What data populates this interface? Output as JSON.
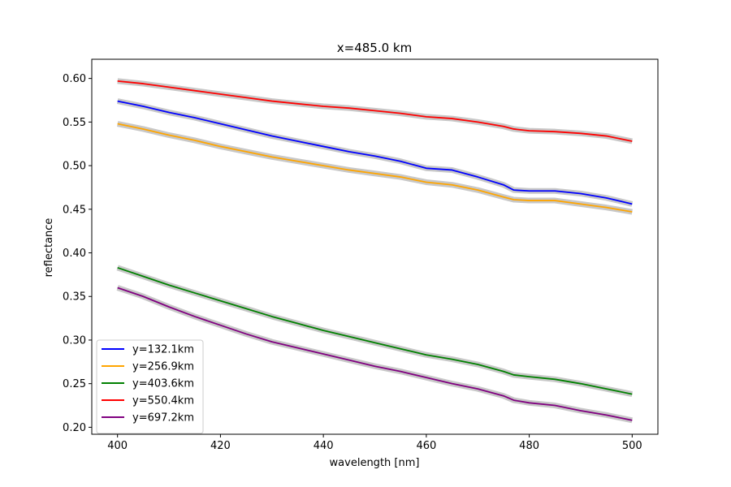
{
  "chart_data": {
    "type": "line",
    "title": "x=485.0 km",
    "xlabel": "wavelength [nm]",
    "ylabel": "reflectance",
    "xlim": [
      395,
      505
    ],
    "ylim": [
      0.192,
      0.622
    ],
    "xticks": [
      400,
      420,
      440,
      460,
      480,
      500
    ],
    "xtick_labels": [
      "400",
      "420",
      "440",
      "460",
      "480",
      "500"
    ],
    "yticks": [
      0.2,
      0.25,
      0.3,
      0.35,
      0.4,
      0.45,
      0.5,
      0.55,
      0.6
    ],
    "ytick_labels": [
      "0.20",
      "0.25",
      "0.30",
      "0.35",
      "0.40",
      "0.45",
      "0.50",
      "0.55",
      "0.60"
    ],
    "grid": false,
    "legend_position": "lower-left",
    "uncertainty_band_color": "#c8c8c8",
    "series": [
      {
        "name": "y=132.1km",
        "color": "#0000ff",
        "x": [
          400,
          405,
          410,
          415,
          420,
          425,
          430,
          435,
          440,
          445,
          450,
          455,
          460,
          465,
          470,
          475,
          477,
          480,
          485,
          490,
          495,
          500
        ],
        "values": [
          0.574,
          0.568,
          0.561,
          0.555,
          0.548,
          0.541,
          0.534,
          0.528,
          0.522,
          0.516,
          0.511,
          0.505,
          0.497,
          0.495,
          0.487,
          0.478,
          0.472,
          0.471,
          0.471,
          0.468,
          0.463,
          0.456
        ]
      },
      {
        "name": "y=256.9km",
        "color": "#ffa500",
        "x": [
          400,
          405,
          410,
          415,
          420,
          425,
          430,
          435,
          440,
          445,
          450,
          455,
          460,
          465,
          470,
          475,
          477,
          480,
          485,
          490,
          495,
          500
        ],
        "values": [
          0.548,
          0.542,
          0.535,
          0.529,
          0.522,
          0.516,
          0.51,
          0.505,
          0.5,
          0.495,
          0.491,
          0.487,
          0.481,
          0.478,
          0.472,
          0.464,
          0.461,
          0.46,
          0.46,
          0.456,
          0.452,
          0.447
        ]
      },
      {
        "name": "y=403.6km",
        "color": "#008000",
        "x": [
          400,
          405,
          410,
          415,
          420,
          425,
          430,
          435,
          440,
          445,
          450,
          455,
          460,
          465,
          470,
          475,
          477,
          480,
          485,
          490,
          495,
          500
        ],
        "values": [
          0.383,
          0.373,
          0.363,
          0.354,
          0.345,
          0.336,
          0.327,
          0.319,
          0.311,
          0.304,
          0.297,
          0.29,
          0.283,
          0.278,
          0.272,
          0.264,
          0.26,
          0.258,
          0.255,
          0.25,
          0.244,
          0.238
        ]
      },
      {
        "name": "y=550.4km",
        "color": "#ff0000",
        "x": [
          400,
          405,
          410,
          415,
          420,
          425,
          430,
          435,
          440,
          445,
          450,
          455,
          460,
          465,
          470,
          475,
          477,
          480,
          485,
          490,
          495,
          500
        ],
        "values": [
          0.597,
          0.594,
          0.59,
          0.586,
          0.582,
          0.578,
          0.574,
          0.571,
          0.568,
          0.566,
          0.563,
          0.56,
          0.556,
          0.554,
          0.55,
          0.545,
          0.542,
          0.54,
          0.539,
          0.537,
          0.534,
          0.528
        ]
      },
      {
        "name": "y=697.2km",
        "color": "#800080",
        "x": [
          400,
          405,
          410,
          415,
          420,
          425,
          430,
          435,
          440,
          445,
          450,
          455,
          460,
          465,
          470,
          475,
          477,
          480,
          485,
          490,
          495,
          500
        ],
        "values": [
          0.36,
          0.35,
          0.338,
          0.327,
          0.317,
          0.307,
          0.298,
          0.291,
          0.284,
          0.277,
          0.27,
          0.264,
          0.257,
          0.25,
          0.244,
          0.236,
          0.231,
          0.228,
          0.225,
          0.219,
          0.214,
          0.208
        ]
      }
    ]
  }
}
